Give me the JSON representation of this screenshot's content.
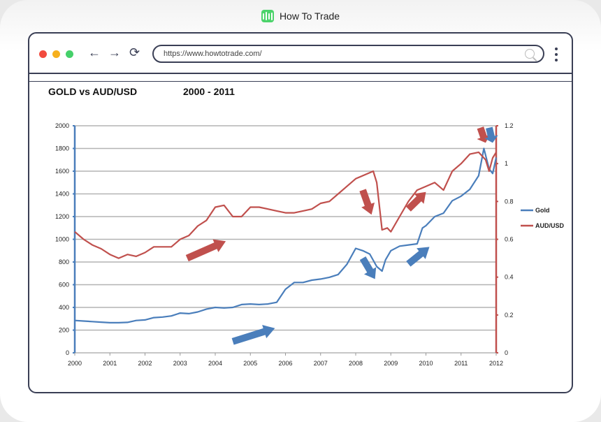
{
  "brand": {
    "name": "How To Trade",
    "color": "#4cd36b"
  },
  "browser": {
    "url": "https://www.howtotrade.com/",
    "dots": [
      "#f24b3e",
      "#f6b01e",
      "#45d06a"
    ],
    "back_icon": "arrow-left-icon",
    "forward_icon": "arrow-right-icon",
    "reload_icon": "reload-icon",
    "search_icon": "search-icon",
    "menu_icon": "kebab-menu-icon"
  },
  "page": {
    "title": "GOLD vs AUD/USD",
    "range": "2000 - 2011"
  },
  "chart_data": {
    "type": "line",
    "title": "GOLD vs AUD/USD 2000 - 2011",
    "xlabel": "",
    "ylabel": "",
    "x_ticks": [
      "2000",
      "2001",
      "2002",
      "2003",
      "2004",
      "2005",
      "2006",
      "2007",
      "2008",
      "2009",
      "2010",
      "2011",
      "2012"
    ],
    "y_left": {
      "min": 0,
      "max": 2000,
      "step": 200,
      "ticks": [
        "0",
        "200",
        "400",
        "600",
        "800",
        "1000",
        "1200",
        "1400",
        "1600",
        "1800",
        "2000"
      ],
      "color": "#4a7ebb"
    },
    "y_right": {
      "min": 0,
      "max": 1.2,
      "step": 0.2,
      "ticks": [
        "0",
        "0.2",
        "0.4",
        "0.6",
        "0.8",
        "1",
        "1.2"
      ],
      "color": "#c0504d"
    },
    "grid": true,
    "legend_position": "right",
    "series": [
      {
        "name": "Gold",
        "axis": "left",
        "color": "#4a7ebb",
        "x": [
          2000,
          2000.25,
          2000.5,
          2000.75,
          2001,
          2001.25,
          2001.5,
          2001.75,
          2002,
          2002.25,
          2002.5,
          2002.75,
          2003,
          2003.25,
          2003.5,
          2003.75,
          2004,
          2004.25,
          2004.5,
          2004.75,
          2005,
          2005.25,
          2005.5,
          2005.75,
          2006,
          2006.25,
          2006.5,
          2006.75,
          2007,
          2007.25,
          2007.5,
          2007.75,
          2008,
          2008.2,
          2008.4,
          2008.6,
          2008.75,
          2008.85,
          2009,
          2009.25,
          2009.5,
          2009.75,
          2009.9,
          2010,
          2010.25,
          2010.5,
          2010.75,
          2011,
          2011.25,
          2011.5,
          2011.65,
          2011.8,
          2011.9,
          2012
        ],
        "values": [
          285,
          280,
          275,
          270,
          265,
          265,
          268,
          285,
          290,
          310,
          315,
          325,
          350,
          345,
          360,
          385,
          400,
          395,
          400,
          425,
          430,
          425,
          430,
          445,
          560,
          620,
          620,
          640,
          650,
          665,
          690,
          780,
          920,
          900,
          870,
          760,
          720,
          820,
          900,
          940,
          950,
          960,
          1100,
          1120,
          1200,
          1230,
          1340,
          1380,
          1440,
          1560,
          1800,
          1620,
          1580,
          1720
        ]
      },
      {
        "name": "AUD/USD",
        "axis": "right",
        "color": "#c0504d",
        "x": [
          2000,
          2000.25,
          2000.5,
          2000.75,
          2001,
          2001.25,
          2001.5,
          2001.75,
          2002,
          2002.25,
          2002.5,
          2002.75,
          2003,
          2003.25,
          2003.5,
          2003.75,
          2004,
          2004.25,
          2004.5,
          2004.75,
          2005,
          2005.25,
          2005.5,
          2005.75,
          2006,
          2006.25,
          2006.5,
          2006.75,
          2007,
          2007.25,
          2007.5,
          2007.75,
          2008,
          2008.25,
          2008.5,
          2008.6,
          2008.75,
          2008.9,
          2009,
          2009.25,
          2009.5,
          2009.75,
          2010,
          2010.25,
          2010.5,
          2010.75,
          2011,
          2011.25,
          2011.5,
          2011.7,
          2011.8,
          2011.9,
          2012
        ],
        "values": [
          0.64,
          0.6,
          0.57,
          0.55,
          0.52,
          0.5,
          0.52,
          0.51,
          0.53,
          0.56,
          0.56,
          0.56,
          0.6,
          0.62,
          0.67,
          0.7,
          0.77,
          0.78,
          0.72,
          0.72,
          0.77,
          0.77,
          0.76,
          0.75,
          0.74,
          0.74,
          0.75,
          0.76,
          0.79,
          0.8,
          0.84,
          0.88,
          0.92,
          0.94,
          0.96,
          0.9,
          0.65,
          0.66,
          0.64,
          0.72,
          0.8,
          0.86,
          0.88,
          0.9,
          0.86,
          0.96,
          1.0,
          1.05,
          1.06,
          1.02,
          0.96,
          1.03,
          1.06
        ]
      }
    ],
    "annotations": [
      {
        "type": "arrow",
        "color": "#c0504d",
        "from": [
          2003.2,
          0.5
        ],
        "to": [
          2004.3,
          0.59
        ],
        "direction": "up-right"
      },
      {
        "type": "arrow",
        "color": "#4a7ebb",
        "from": [
          2004.5,
          0.06
        ],
        "to": [
          2005.7,
          0.13
        ],
        "direction": "up-right"
      },
      {
        "type": "arrow",
        "color": "#c0504d",
        "from": [
          2008.2,
          0.86
        ],
        "to": [
          2008.45,
          0.73
        ],
        "direction": "down"
      },
      {
        "type": "arrow",
        "color": "#4a7ebb",
        "from": [
          2008.2,
          0.5
        ],
        "to": [
          2008.55,
          0.39
        ],
        "direction": "down"
      },
      {
        "type": "arrow",
        "color": "#c0504d",
        "from": [
          2009.5,
          0.76
        ],
        "to": [
          2010.0,
          0.85
        ],
        "direction": "up-right"
      },
      {
        "type": "arrow",
        "color": "#4a7ebb",
        "from": [
          2009.5,
          0.47
        ],
        "to": [
          2010.1,
          0.56
        ],
        "direction": "up-right"
      },
      {
        "type": "arrow",
        "color": "#c0504d",
        "from": [
          2011.55,
          1.19
        ],
        "to": [
          2011.7,
          1.11
        ],
        "direction": "down"
      },
      {
        "type": "arrow",
        "color": "#4a7ebb",
        "from": [
          2011.8,
          1.19
        ],
        "to": [
          2011.9,
          1.11
        ],
        "direction": "down"
      }
    ]
  }
}
